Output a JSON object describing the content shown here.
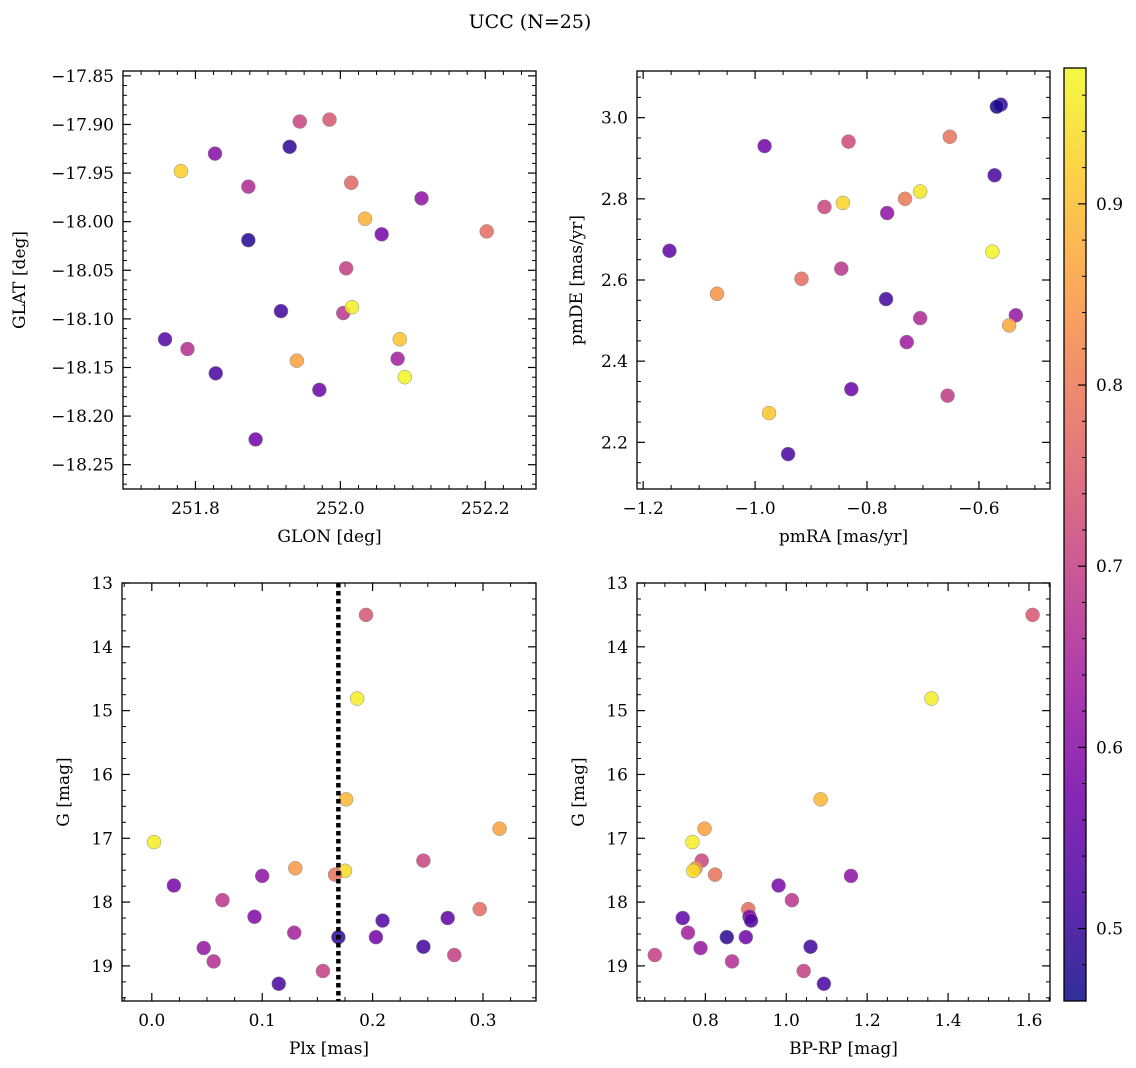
{
  "figure": {
    "title": "UCC (N=25)"
  },
  "colorbar": {
    "range": [
      0.46,
      0.975
    ],
    "ticks": [
      0.5,
      0.6,
      0.7,
      0.8,
      0.9
    ],
    "tick_labels": [
      "0.5",
      "0.6",
      "0.7",
      "0.8",
      "0.9"
    ],
    "colormap": "plasma"
  },
  "colormap_stops": [
    "#0d0887",
    "#46039f",
    "#7201a8",
    "#9c179e",
    "#bd3786",
    "#d8576b",
    "#ed7953",
    "#fb9f3a",
    "#fdca26",
    "#f0f921"
  ],
  "chart_data": [
    {
      "type": "scatter",
      "id": "sky",
      "xlabel": "GLON [deg]",
      "ylabel": "GLAT [deg]",
      "xlim": [
        251.7,
        252.27
      ],
      "ylim": [
        -18.275,
        -17.845
      ],
      "y_inverted": false,
      "xticks": [
        251.8,
        252.0,
        252.2
      ],
      "xtick_labels": [
        "251.8",
        "252.0",
        "252.2"
      ],
      "yticks": [
        -17.85,
        -17.9,
        -17.95,
        -18.0,
        -18.05,
        -18.1,
        -18.15,
        -18.2,
        -18.25
      ],
      "ytick_labels": [
        "−17.85",
        "−17.90",
        "−17.95",
        "−18.00",
        "−18.05",
        "−18.10",
        "−18.15",
        "−18.20",
        "−18.25"
      ],
      "grid": false,
      "points": [
        {
          "x": 251.944,
          "y": -17.897,
          "c": 0.71
        },
        {
          "x": 251.985,
          "y": -17.895,
          "c": 0.74
        },
        {
          "x": 251.827,
          "y": -17.93,
          "c": 0.6
        },
        {
          "x": 251.93,
          "y": -17.923,
          "c": 0.49
        },
        {
          "x": 251.78,
          "y": -17.948,
          "c": 0.92
        },
        {
          "x": 251.873,
          "y": -17.964,
          "c": 0.66
        },
        {
          "x": 252.015,
          "y": -17.96,
          "c": 0.77
        },
        {
          "x": 252.112,
          "y": -17.976,
          "c": 0.61
        },
        {
          "x": 252.034,
          "y": -17.997,
          "c": 0.88
        },
        {
          "x": 251.873,
          "y": -18.019,
          "c": 0.48
        },
        {
          "x": 252.057,
          "y": -18.013,
          "c": 0.58
        },
        {
          "x": 252.202,
          "y": -18.01,
          "c": 0.78
        },
        {
          "x": 252.008,
          "y": -18.048,
          "c": 0.7
        },
        {
          "x": 251.918,
          "y": -18.092,
          "c": 0.51
        },
        {
          "x": 252.004,
          "y": -18.094,
          "c": 0.68
        },
        {
          "x": 252.016,
          "y": -18.088,
          "c": 0.96
        },
        {
          "x": 252.082,
          "y": -18.121,
          "c": 0.91
        },
        {
          "x": 251.758,
          "y": -18.121,
          "c": 0.53
        },
        {
          "x": 251.789,
          "y": -18.131,
          "c": 0.67
        },
        {
          "x": 252.079,
          "y": -18.141,
          "c": 0.64
        },
        {
          "x": 251.94,
          "y": -18.143,
          "c": 0.86
        },
        {
          "x": 252.089,
          "y": -18.16,
          "c": 0.97
        },
        {
          "x": 251.828,
          "y": -18.156,
          "c": 0.52
        },
        {
          "x": 251.971,
          "y": -18.173,
          "c": 0.56
        },
        {
          "x": 251.883,
          "y": -18.224,
          "c": 0.57
        }
      ]
    },
    {
      "type": "scatter",
      "id": "pm",
      "xlabel": "pmRA [mas/yr]",
      "ylabel": "pmDE [mas/yr]",
      "xlim": [
        -1.211,
        -0.473
      ],
      "ylim": [
        2.085,
        3.115
      ],
      "y_inverted": false,
      "xticks": [
        -1.2,
        -1.0,
        -0.8,
        -0.6
      ],
      "xtick_labels": [
        "−1.2",
        "−1.0",
        "−0.8",
        "−0.6"
      ],
      "yticks": [
        2.2,
        2.4,
        2.6,
        2.8,
        3.0
      ],
      "ytick_labels": [
        "2.2",
        "2.4",
        "2.6",
        "2.8",
        "3.0"
      ],
      "grid": false,
      "points": [
        {
          "x": -0.561,
          "y": 3.032,
          "c": 0.5
        },
        {
          "x": -0.568,
          "y": 3.027,
          "c": 0.47
        },
        {
          "x": -0.652,
          "y": 2.953,
          "c": 0.79
        },
        {
          "x": -0.833,
          "y": 2.941,
          "c": 0.72
        },
        {
          "x": -0.983,
          "y": 2.93,
          "c": 0.57
        },
        {
          "x": -0.572,
          "y": 2.858,
          "c": 0.52
        },
        {
          "x": -0.705,
          "y": 2.818,
          "c": 0.95
        },
        {
          "x": -0.732,
          "y": 2.8,
          "c": 0.8
        },
        {
          "x": -0.843,
          "y": 2.79,
          "c": 0.93
        },
        {
          "x": -0.876,
          "y": 2.78,
          "c": 0.71
        },
        {
          "x": -0.764,
          "y": 2.765,
          "c": 0.61
        },
        {
          "x": -1.153,
          "y": 2.672,
          "c": 0.55
        },
        {
          "x": -0.576,
          "y": 2.67,
          "c": 0.97
        },
        {
          "x": -0.846,
          "y": 2.628,
          "c": 0.68
        },
        {
          "x": -0.917,
          "y": 2.603,
          "c": 0.78
        },
        {
          "x": -1.068,
          "y": 2.566,
          "c": 0.84
        },
        {
          "x": -0.766,
          "y": 2.553,
          "c": 0.51
        },
        {
          "x": -0.534,
          "y": 2.513,
          "c": 0.62
        },
        {
          "x": -0.705,
          "y": 2.506,
          "c": 0.66
        },
        {
          "x": -0.546,
          "y": 2.488,
          "c": 0.87
        },
        {
          "x": -0.729,
          "y": 2.447,
          "c": 0.63
        },
        {
          "x": -0.828,
          "y": 2.331,
          "c": 0.56
        },
        {
          "x": -0.656,
          "y": 2.315,
          "c": 0.69
        },
        {
          "x": -0.975,
          "y": 2.272,
          "c": 0.91
        },
        {
          "x": -0.941,
          "y": 2.171,
          "c": 0.52
        }
      ]
    },
    {
      "type": "scatter",
      "id": "plx",
      "xlabel": "Plx [mas]",
      "ylabel": "G [mag]",
      "xlim": [
        -0.027,
        0.348
      ],
      "ylim": [
        13.0,
        19.55
      ],
      "y_inverted": true,
      "xticks": [
        0.0,
        0.1,
        0.2,
        0.3
      ],
      "xtick_labels": [
        "0.0",
        "0.1",
        "0.2",
        "0.3"
      ],
      "yticks": [
        13,
        14,
        15,
        16,
        17,
        18,
        19
      ],
      "ytick_labels": [
        "13",
        "14",
        "15",
        "16",
        "17",
        "18",
        "19"
      ],
      "grid": false,
      "vline": 0.169,
      "points": [
        {
          "x": 0.194,
          "y": 13.5,
          "c": 0.74
        },
        {
          "x": 0.186,
          "y": 14.81,
          "c": 0.96
        },
        {
          "x": 0.176,
          "y": 16.39,
          "c": 0.89
        },
        {
          "x": 0.002,
          "y": 17.06,
          "c": 0.96
        },
        {
          "x": 0.315,
          "y": 16.85,
          "c": 0.86
        },
        {
          "x": 0.246,
          "y": 17.35,
          "c": 0.71
        },
        {
          "x": 0.13,
          "y": 17.47,
          "c": 0.85
        },
        {
          "x": 0.175,
          "y": 17.51,
          "c": 0.94
        },
        {
          "x": 0.166,
          "y": 17.57,
          "c": 0.79
        },
        {
          "x": 0.1,
          "y": 17.59,
          "c": 0.61
        },
        {
          "x": 0.02,
          "y": 17.74,
          "c": 0.58
        },
        {
          "x": 0.064,
          "y": 17.97,
          "c": 0.68
        },
        {
          "x": 0.297,
          "y": 18.11,
          "c": 0.78
        },
        {
          "x": 0.093,
          "y": 18.23,
          "c": 0.59
        },
        {
          "x": 0.268,
          "y": 18.25,
          "c": 0.55
        },
        {
          "x": 0.209,
          "y": 18.29,
          "c": 0.53
        },
        {
          "x": 0.129,
          "y": 18.48,
          "c": 0.64
        },
        {
          "x": 0.169,
          "y": 18.55,
          "c": 0.49
        },
        {
          "x": 0.203,
          "y": 18.55,
          "c": 0.57
        },
        {
          "x": 0.047,
          "y": 18.72,
          "c": 0.62
        },
        {
          "x": 0.246,
          "y": 18.7,
          "c": 0.51
        },
        {
          "x": 0.274,
          "y": 18.83,
          "c": 0.7
        },
        {
          "x": 0.056,
          "y": 18.93,
          "c": 0.67
        },
        {
          "x": 0.155,
          "y": 19.08,
          "c": 0.7
        },
        {
          "x": 0.115,
          "y": 19.28,
          "c": 0.52
        }
      ]
    },
    {
      "type": "scatter",
      "id": "cmd",
      "xlabel": "BP-RP [mag]",
      "ylabel": "G [mag]",
      "xlim": [
        0.631,
        1.652
      ],
      "ylim": [
        13.0,
        19.55
      ],
      "y_inverted": true,
      "xticks": [
        0.8,
        1.0,
        1.2,
        1.4,
        1.6
      ],
      "xtick_labels": [
        "0.8",
        "1.0",
        "1.2",
        "1.4",
        "1.6"
      ],
      "yticks": [
        13,
        14,
        15,
        16,
        17,
        18,
        19
      ],
      "ytick_labels": [
        "13",
        "14",
        "15",
        "16",
        "17",
        "18",
        "19"
      ],
      "grid": false,
      "points": [
        {
          "x": 1.609,
          "y": 13.5,
          "c": 0.74
        },
        {
          "x": 1.359,
          "y": 14.81,
          "c": 0.96
        },
        {
          "x": 1.085,
          "y": 16.39,
          "c": 0.89
        },
        {
          "x": 0.768,
          "y": 17.06,
          "c": 0.96
        },
        {
          "x": 0.798,
          "y": 16.85,
          "c": 0.86
        },
        {
          "x": 0.791,
          "y": 17.35,
          "c": 0.71
        },
        {
          "x": 0.776,
          "y": 17.47,
          "c": 0.85
        },
        {
          "x": 0.77,
          "y": 17.51,
          "c": 0.94
        },
        {
          "x": 0.824,
          "y": 17.57,
          "c": 0.79
        },
        {
          "x": 1.16,
          "y": 17.59,
          "c": 0.61
        },
        {
          "x": 0.981,
          "y": 17.74,
          "c": 0.58
        },
        {
          "x": 1.014,
          "y": 17.97,
          "c": 0.68
        },
        {
          "x": 0.906,
          "y": 18.11,
          "c": 0.78
        },
        {
          "x": 0.744,
          "y": 18.25,
          "c": 0.55
        },
        {
          "x": 0.909,
          "y": 18.23,
          "c": 0.59
        },
        {
          "x": 0.913,
          "y": 18.29,
          "c": 0.53
        },
        {
          "x": 0.757,
          "y": 18.48,
          "c": 0.64
        },
        {
          "x": 0.853,
          "y": 18.55,
          "c": 0.49
        },
        {
          "x": 0.9,
          "y": 18.55,
          "c": 0.57
        },
        {
          "x": 0.788,
          "y": 18.72,
          "c": 0.62
        },
        {
          "x": 1.06,
          "y": 18.7,
          "c": 0.51
        },
        {
          "x": 0.675,
          "y": 18.83,
          "c": 0.7
        },
        {
          "x": 0.866,
          "y": 18.93,
          "c": 0.67
        },
        {
          "x": 1.043,
          "y": 19.08,
          "c": 0.7
        },
        {
          "x": 1.093,
          "y": 19.28,
          "c": 0.52
        }
      ]
    }
  ]
}
